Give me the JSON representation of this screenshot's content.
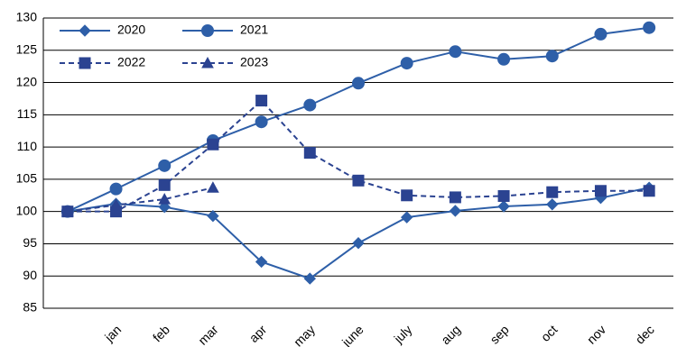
{
  "chart_data": {
    "type": "line",
    "categories": [
      null,
      "jan",
      "feb",
      "mar",
      "apr",
      "may",
      "june",
      "july",
      "aug",
      "sep",
      "oct",
      "nov",
      "dec"
    ],
    "series": [
      {
        "name": "2020",
        "color": "#2e5fa8",
        "marker": "diamond",
        "dash": false,
        "values": [
          100,
          101.2,
          100.7,
          99.3,
          92.2,
          89.6,
          95.1,
          99.1,
          100.1,
          100.8,
          101.1,
          102.1,
          103.7
        ]
      },
      {
        "name": "2021",
        "color": "#2e5fa8",
        "marker": "circle",
        "dash": false,
        "values": [
          100,
          103.5,
          107.1,
          111,
          113.9,
          116.5,
          119.9,
          123,
          124.8,
          123.6,
          124.1,
          127.5,
          128.5
        ]
      },
      {
        "name": "2022",
        "color": "#2b4391",
        "marker": "square",
        "dash": true,
        "values": [
          100,
          100,
          104.1,
          110.4,
          117.2,
          109.1,
          104.8,
          102.5,
          102.2,
          102.4,
          103,
          103.2,
          103.2
        ]
      },
      {
        "name": "2023",
        "color": "#2b4391",
        "marker": "triangle",
        "dash": true,
        "values": [
          100,
          101,
          101.9,
          103.7,
          null,
          null,
          null,
          null,
          null,
          null,
          null,
          null,
          null
        ]
      }
    ],
    "ylim": [
      85,
      130
    ],
    "yticks": [
      85,
      90,
      95,
      100,
      105,
      110,
      115,
      120,
      125,
      130
    ],
    "grid": true,
    "legend": "top-left"
  }
}
